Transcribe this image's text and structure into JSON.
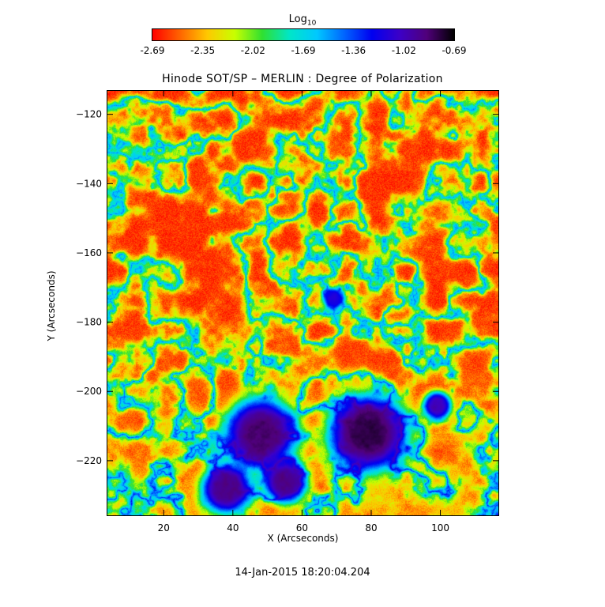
{
  "colorbar": {
    "label": "Log",
    "label_subscript": "10",
    "tick_labels": [
      "-2.69",
      "-2.35",
      "-2.02",
      "-1.69",
      "-1.36",
      "-1.02",
      "-0.69"
    ],
    "colors": [
      "#ff0000",
      "#ff6400",
      "#ffc800",
      "#c8ff00",
      "#30e030",
      "#00e6c8",
      "#00c8ff",
      "#0064ff",
      "#0000f0",
      "#3c00c8",
      "#50007a",
      "#000000"
    ]
  },
  "chart_data": {
    "type": "heatmap",
    "title": "Hinode SOT/SP – MERLIN : Degree of Polarization",
    "xlabel": "X (Arcseconds)",
    "ylabel": "Y (Arcseconds)",
    "xlim": [
      3.5,
      117
    ],
    "ylim": [
      -236,
      -113
    ],
    "x_ticks": [
      20,
      40,
      60,
      80,
      100
    ],
    "x_tick_labels": [
      "20",
      "40",
      "60",
      "80",
      "100"
    ],
    "y_ticks": [
      -120,
      -140,
      -160,
      -180,
      -200,
      -220
    ],
    "y_tick_labels": [
      "−120",
      "−140",
      "−160",
      "−180",
      "−200",
      "−220"
    ],
    "value_range": [
      -2.69,
      -0.69
    ],
    "features": [
      {
        "center": [
          79,
          -212
        ],
        "radius": 11,
        "level": -0.75
      },
      {
        "center": [
          48,
          -212
        ],
        "radius": 10,
        "level": -0.8
      },
      {
        "center": [
          38,
          -228
        ],
        "radius": 7,
        "level": -0.85
      },
      {
        "center": [
          55,
          -226
        ],
        "radius": 6,
        "level": -0.85
      },
      {
        "center": [
          99,
          -204
        ],
        "radius": 4,
        "level": -0.95
      },
      {
        "center": [
          69,
          -173
        ],
        "radius": 3,
        "level": -1.1
      }
    ]
  },
  "footer": {
    "timestamp": "14-Jan-2015 18:20:04.204"
  }
}
